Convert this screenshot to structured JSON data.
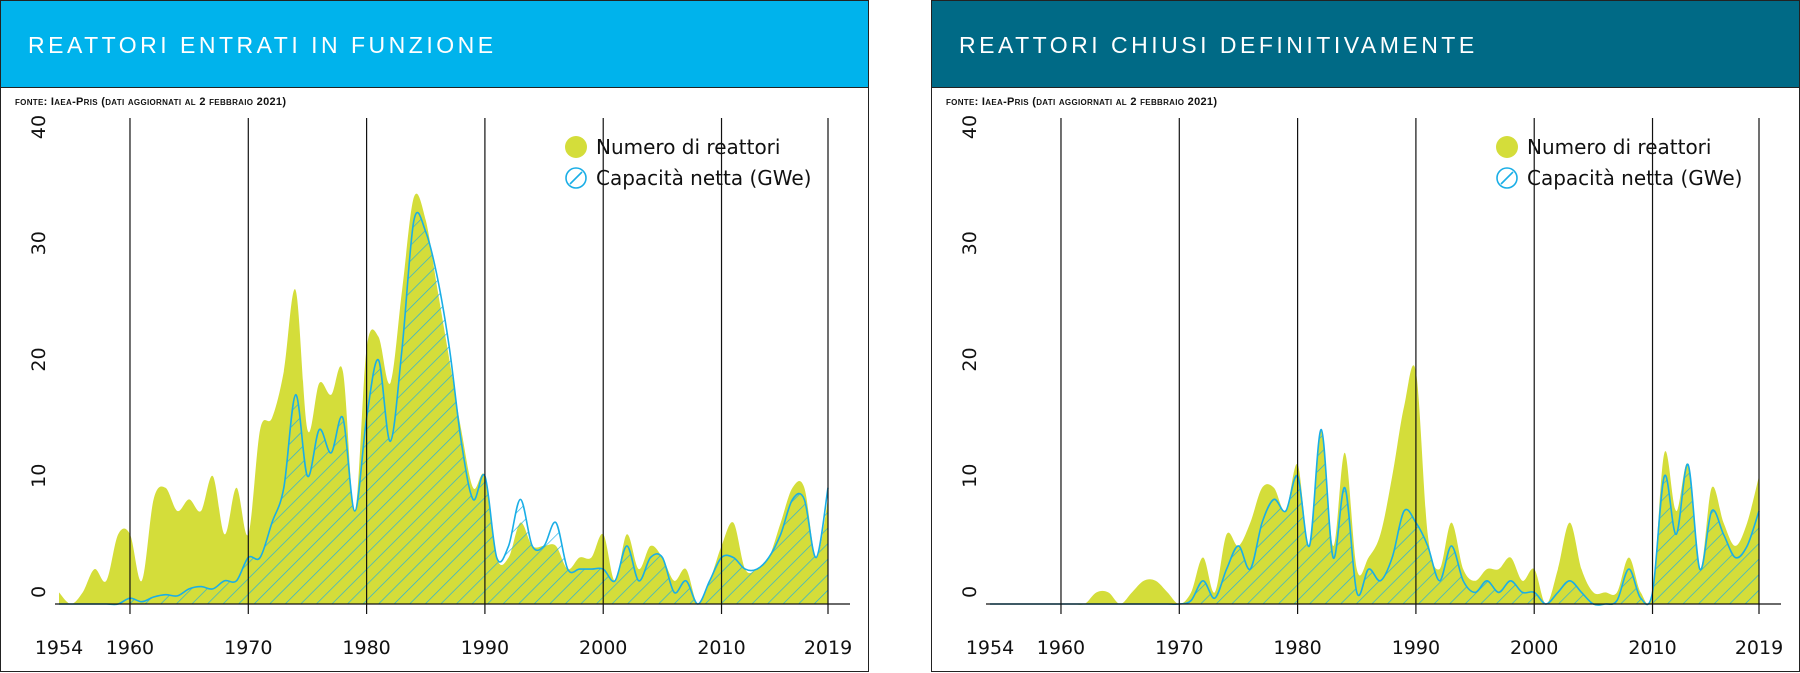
{
  "colors": {
    "reactors_fill": "#d4dd3a",
    "capacity_line": "#1aaee6",
    "left_header": "#00b3ec",
    "right_header": "#006a86"
  },
  "icons": {
    "legend_reactors": "filled-circle-icon",
    "legend_capacity": "hatched-circle-icon"
  },
  "left": {
    "title": "REATTORI ENTRATI IN FUNZIONE",
    "source": "fonte: Iaea-Pris (dati aggiornati al 2 febbraio 2021)"
  },
  "right": {
    "title": "REATTORI CHIUSI DEFINITIVAMENTE",
    "source": "fonte: Iaea-Pris (dati aggiornati al 2 febbraio 2021)"
  },
  "chart_data": [
    {
      "type": "area",
      "title": "REATTORI ENTRATI IN FUNZIONE",
      "x_ticks": [
        1954,
        1960,
        1970,
        1980,
        1990,
        2000,
        2010,
        2019
      ],
      "y_ticks": [
        0,
        10,
        20,
        30,
        40
      ],
      "ylim": [
        0,
        40
      ],
      "xlim": [
        1954,
        2019
      ],
      "grid": "vertical lines at decade ticks",
      "legend": "top-right",
      "series": [
        {
          "name": "Numero di reattori",
          "x": [
            1954,
            1955,
            1956,
            1957,
            1958,
            1959,
            1960,
            1961,
            1962,
            1963,
            1964,
            1965,
            1966,
            1967,
            1968,
            1969,
            1970,
            1971,
            1972,
            1973,
            1974,
            1975,
            1976,
            1977,
            1978,
            1979,
            1980,
            1981,
            1982,
            1983,
            1984,
            1985,
            1986,
            1987,
            1988,
            1989,
            1990,
            1991,
            1992,
            1993,
            1994,
            1995,
            1996,
            1997,
            1998,
            1999,
            2000,
            2001,
            2002,
            2003,
            2004,
            2005,
            2006,
            2007,
            2008,
            2009,
            2010,
            2011,
            2012,
            2013,
            2014,
            2015,
            2016,
            2017,
            2018,
            2019
          ],
          "values": [
            1,
            0,
            1,
            3,
            2,
            6,
            6,
            2,
            9,
            10,
            8,
            9,
            8,
            11,
            6,
            10,
            6,
            15,
            16,
            20,
            27,
            15,
            19,
            18,
            20,
            8,
            22,
            23,
            19,
            27,
            35,
            33,
            27,
            21,
            15,
            10,
            11,
            4,
            4,
            7,
            5,
            5,
            5,
            3,
            4,
            4,
            6,
            2,
            6,
            3,
            5,
            4,
            2,
            3,
            0,
            2,
            5,
            7,
            3,
            3,
            4,
            7,
            10,
            10,
            4,
            9
          ]
        },
        {
          "name": "Capacità netta (GWe)",
          "x": [
            1954,
            1955,
            1956,
            1957,
            1958,
            1959,
            1960,
            1961,
            1962,
            1963,
            1964,
            1965,
            1966,
            1967,
            1968,
            1969,
            1970,
            1971,
            1972,
            1973,
            1974,
            1975,
            1976,
            1977,
            1978,
            1979,
            1980,
            1981,
            1982,
            1983,
            1984,
            1985,
            1986,
            1987,
            1988,
            1989,
            1990,
            1991,
            1992,
            1993,
            1994,
            1995,
            1996,
            1997,
            1998,
            1999,
            2000,
            2001,
            2002,
            2003,
            2004,
            2005,
            2006,
            2007,
            2008,
            2009,
            2010,
            2011,
            2012,
            2013,
            2014,
            2015,
            2016,
            2017,
            2018,
            2019
          ],
          "values": [
            0,
            0,
            0,
            0,
            0,
            0,
            0.5,
            0.2,
            0.6,
            0.8,
            0.7,
            1.3,
            1.5,
            1.3,
            2,
            2,
            4,
            4,
            7,
            10,
            18,
            11,
            15,
            13,
            16,
            8,
            16,
            21,
            14,
            22,
            33,
            32,
            28,
            22,
            14,
            9,
            11,
            4,
            5,
            9,
            5,
            5,
            7,
            3,
            3,
            3,
            3,
            2,
            5,
            2,
            4,
            4,
            1,
            2,
            0,
            2,
            4,
            4,
            3,
            3,
            4,
            6,
            9,
            9,
            4,
            10
          ]
        }
      ]
    },
    {
      "type": "area",
      "title": "REATTORI CHIUSI DEFINITIVAMENTE",
      "x_ticks": [
        1954,
        1960,
        1970,
        1980,
        1990,
        2000,
        2010,
        2019
      ],
      "y_ticks": [
        0,
        10,
        20,
        30,
        40
      ],
      "ylim": [
        0,
        40
      ],
      "xlim": [
        1954,
        2019
      ],
      "grid": "vertical lines at decade ticks",
      "legend": "top-right",
      "series": [
        {
          "name": "Numero di reattori",
          "x": [
            1954,
            1955,
            1956,
            1957,
            1958,
            1959,
            1960,
            1961,
            1962,
            1963,
            1964,
            1965,
            1966,
            1967,
            1968,
            1969,
            1970,
            1971,
            1972,
            1973,
            1974,
            1975,
            1976,
            1977,
            1978,
            1979,
            1980,
            1981,
            1982,
            1983,
            1984,
            1985,
            1986,
            1987,
            1988,
            1989,
            1990,
            1991,
            1992,
            1993,
            1994,
            1995,
            1996,
            1997,
            1998,
            1999,
            2000,
            2001,
            2002,
            2003,
            2004,
            2005,
            2006,
            2007,
            2008,
            2009,
            2010,
            2011,
            2012,
            2013,
            2014,
            2015,
            2016,
            2017,
            2018,
            2019
          ],
          "values": [
            0,
            0,
            0,
            0,
            0,
            0,
            0,
            0,
            0,
            1,
            1,
            0,
            1,
            2,
            2,
            1,
            0,
            1,
            4,
            1,
            6,
            5,
            7,
            10,
            10,
            8,
            12,
            5,
            15,
            5,
            13,
            3,
            4,
            6,
            11,
            17,
            20,
            6,
            3,
            7,
            3,
            2,
            3,
            3,
            4,
            2,
            3,
            0,
            3,
            7,
            3,
            1,
            1,
            1,
            4,
            1,
            1,
            13,
            8,
            12,
            3,
            10,
            7,
            5,
            7,
            11
          ]
        },
        {
          "name": "Capacità netta (GWe)",
          "x": [
            1954,
            1955,
            1956,
            1957,
            1958,
            1959,
            1960,
            1961,
            1962,
            1963,
            1964,
            1965,
            1966,
            1967,
            1968,
            1969,
            1970,
            1971,
            1972,
            1973,
            1974,
            1975,
            1976,
            1977,
            1978,
            1979,
            1980,
            1981,
            1982,
            1983,
            1984,
            1985,
            1986,
            1987,
            1988,
            1989,
            1990,
            1991,
            1992,
            1993,
            1994,
            1995,
            1996,
            1997,
            1998,
            1999,
            2000,
            2001,
            2002,
            2003,
            2004,
            2005,
            2006,
            2007,
            2008,
            2009,
            2010,
            2011,
            2012,
            2013,
            2014,
            2015,
            2016,
            2017,
            2018,
            2019
          ],
          "values": [
            0,
            0,
            0,
            0,
            0,
            0,
            0,
            0,
            0,
            0,
            0,
            0,
            0,
            0,
            0,
            0,
            0,
            0.3,
            2,
            0.5,
            3,
            5,
            3,
            7,
            9,
            8,
            11,
            5,
            15,
            4,
            10,
            1,
            3,
            2,
            4,
            8,
            7,
            5,
            2,
            5,
            2,
            1,
            2,
            1,
            2,
            1,
            1,
            0,
            1,
            2,
            1,
            0,
            0,
            0.3,
            3,
            0.5,
            1,
            11,
            6,
            12,
            3,
            8,
            6,
            4,
            5,
            8
          ]
        }
      ]
    }
  ]
}
